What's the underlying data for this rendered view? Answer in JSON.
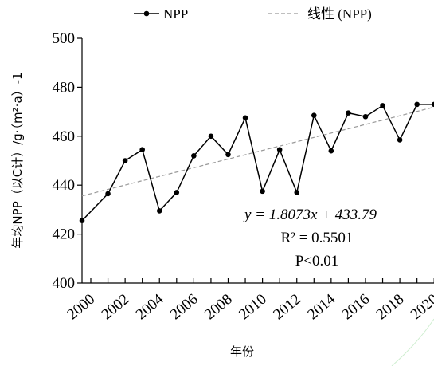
{
  "chart_data": {
    "type": "line",
    "xlabel": "年份",
    "ylabel": "年均NPP（以C计）/g·（m²·a）-1",
    "ylim": [
      400,
      500
    ],
    "yticks": [
      400,
      420,
      440,
      460,
      480,
      500
    ],
    "xlim": [
      2000,
      2020
    ],
    "xticks": [
      "2000",
      "2002",
      "2004",
      "2006",
      "2008",
      "2010",
      "2012",
      "2014",
      "2016",
      "2018",
      "2020"
    ],
    "legend_position": "top",
    "grid": false,
    "series": [
      {
        "name": "NPP",
        "style": "line-with-markers",
        "color": "#000000",
        "x": [
          2000,
          2001,
          2002,
          2003,
          2004,
          2005,
          2006,
          2007,
          2008,
          2009,
          2010,
          2011,
          2012,
          2013,
          2014,
          2015,
          2016,
          2017,
          2018,
          2019,
          2020
        ],
        "y": [
          425.5,
          436.5,
          450,
          454.5,
          429.5,
          437,
          452,
          460,
          452.5,
          467.5,
          437.5,
          454.5,
          437,
          468.5,
          454,
          469.5,
          468,
          472.5,
          458.5,
          473,
          473
        ]
      },
      {
        "name": "线性 (NPP)",
        "style": "dashed-trendline",
        "color": "#999999",
        "x": [
          2000,
          2020
        ],
        "y": [
          435.6,
          471.9
        ]
      }
    ],
    "annotations": {
      "equation": "y = 1.8073x + 433.79",
      "r2": "R² = 0.5501",
      "p": "P<0.01"
    }
  }
}
